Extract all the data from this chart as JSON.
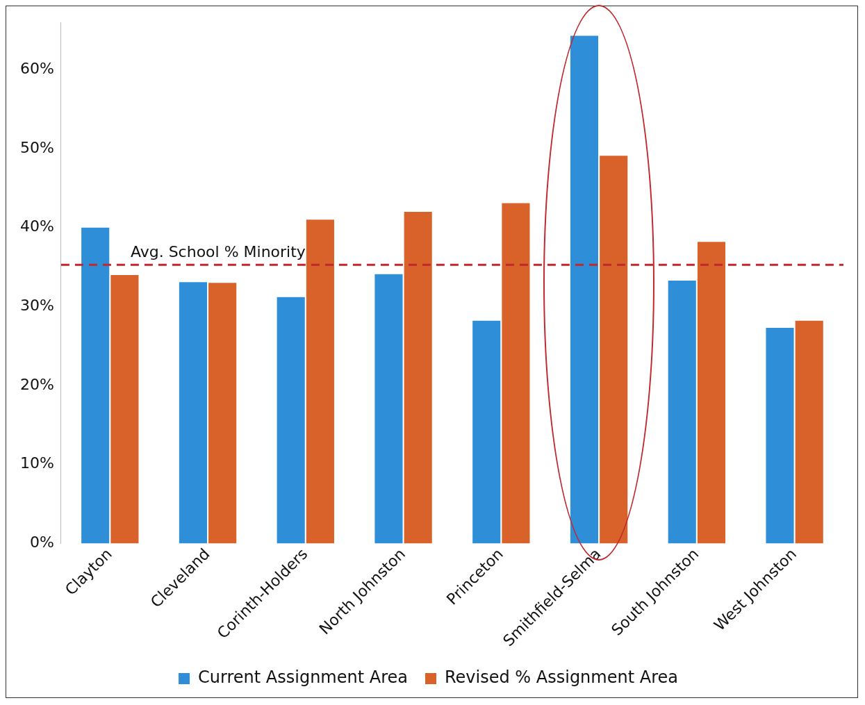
{
  "chart_data": {
    "type": "bar",
    "categories": [
      "Clayton",
      "Cleveland",
      "Corinth-Holders",
      "North Johnston",
      "Princeton",
      "Smithfield-Selma",
      "South Johnston",
      "West Johnston"
    ],
    "series": [
      {
        "name": "Current Assignment Area",
        "color": "#2e8fd8",
        "values": [
          40.0,
          33.1,
          31.2,
          34.1,
          28.2,
          64.3,
          33.3,
          27.3
        ]
      },
      {
        "name": "Revised % Assignment Area",
        "color": "#d9622b",
        "values": [
          34.0,
          33.0,
          41.0,
          42.0,
          43.1,
          49.1,
          38.2,
          28.2
        ]
      }
    ],
    "ylim": [
      0,
      66
    ],
    "yticks": [
      {
        "value": 0,
        "label": "0%"
      },
      {
        "value": 10,
        "label": "10%"
      },
      {
        "value": 20,
        "label": "20%"
      },
      {
        "value": 30,
        "label": "30%"
      },
      {
        "value": 40,
        "label": "40%"
      },
      {
        "value": 50,
        "label": "50%"
      },
      {
        "value": 60,
        "label": "60%"
      }
    ],
    "ref_lines": [
      {
        "axis": "y",
        "value": 35.3,
        "label": "Avg. School % Minority",
        "color": "#c0282d",
        "line_style": "dashed"
      }
    ],
    "grid": false,
    "legend": "bottom"
  }
}
